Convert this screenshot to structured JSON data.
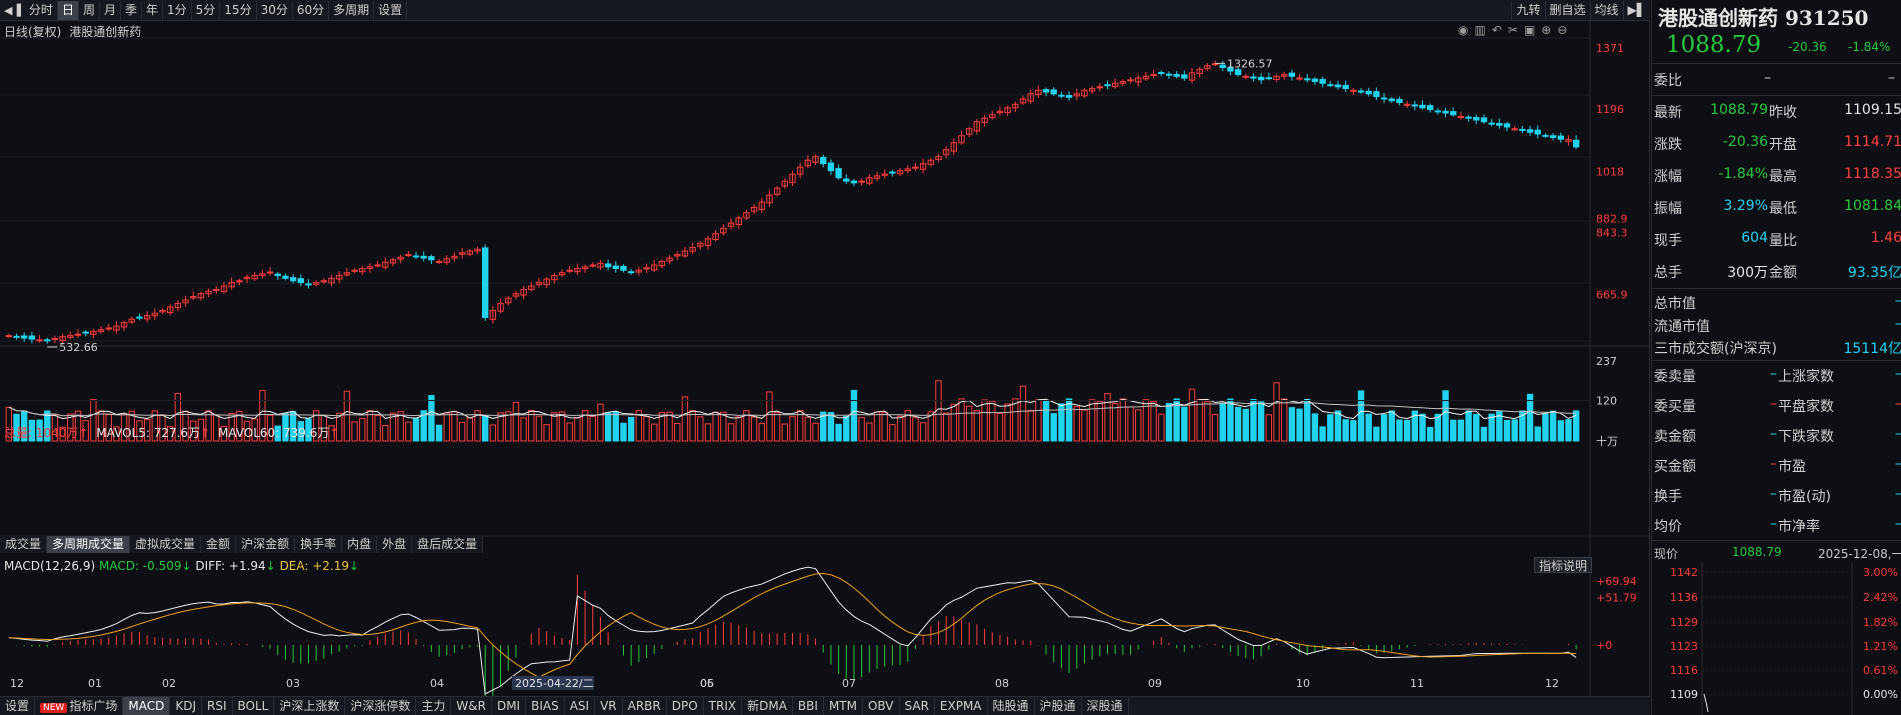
{
  "toolbar": {
    "items": [
      "分时",
      "日",
      "周",
      "月",
      "季",
      "年",
      "1分",
      "5分",
      "15分",
      "30分",
      "60分",
      "多周期",
      "设置"
    ],
    "active_index": 1,
    "right_items": [
      "九转",
      "删自选",
      "均线"
    ]
  },
  "kline": {
    "title": "日线(复权)",
    "name": "港股通创新药",
    "price_labels": [
      "1371",
      "1196",
      "1018",
      "882.9",
      "843.3",
      "665.9"
    ],
    "max_label": "1326.57",
    "min_label": "532.66"
  },
  "volume": {
    "total_label": "总量: 1040万",
    "mavol5_label": "MAVOL5: 727.6万",
    "mavol60_label": "MAVOL60: 739.6万",
    "axis_labels": [
      "237",
      "120",
      "十万"
    ],
    "tabs": [
      "成交量",
      "多周期成交量",
      "虚拟成交量",
      "金额",
      "沪深金额",
      "换手率",
      "内盘",
      "外盘",
      "盘后成交量"
    ],
    "active_tab": 1
  },
  "macd": {
    "title": "MACD(12,26,9)",
    "macd_label": "MACD: -0.509",
    "diff_label": "DIFF: +1.94",
    "dea_label": "DEA: +2.19",
    "indicator_btn": "指标说明",
    "axis_labels": [
      "+69.94",
      "+51.79",
      "+0"
    ]
  },
  "xaxis": {
    "months": [
      "12",
      "01",
      "02",
      "03",
      "04",
      "05",
      "06",
      "07",
      "08",
      "09",
      "10",
      "11",
      "12"
    ],
    "cursor_date": "2025-04-22/二"
  },
  "bottom_tabs": {
    "items": [
      "设置",
      "指标广场",
      "MACD",
      "KDJ",
      "RSI",
      "BOLL",
      "沪深上涨数",
      "沪深涨停数",
      "主力",
      "W&R",
      "DMI",
      "BIAS",
      "ASI",
      "VR",
      "ARBR",
      "DPO",
      "TRIX",
      "新DMA",
      "BBI",
      "MTM",
      "OBV",
      "SAR",
      "EXPMA",
      "陆股通",
      "沪股通",
      "深股通"
    ],
    "new_badge": "NEW",
    "active_index": 2
  },
  "quote": {
    "name": "港股通创新药 931250",
    "price": "1088.79",
    "change": "-20.36",
    "change_pct": "-1.84%",
    "weibi_label": "委比",
    "weibi_value": "–",
    "weibi_value2": "–",
    "rows": [
      {
        "l1": "最新",
        "v1": "1088.79",
        "c1": "green",
        "l2": "昨收",
        "v2": "1109.15",
        "c2": "white"
      },
      {
        "l1": "涨跌",
        "v1": "-20.36",
        "c1": "green",
        "l2": "开盘",
        "v2": "1114.71",
        "c2": "red"
      },
      {
        "l1": "涨幅",
        "v1": "-1.84%",
        "c1": "green",
        "l2": "最高",
        "v2": "1118.35",
        "c2": "red"
      },
      {
        "l1": "振幅",
        "v1": "3.29%",
        "c1": "cyan",
        "l2": "最低",
        "v2": "1081.84",
        "c2": "green"
      },
      {
        "l1": "现手",
        "v1": "604",
        "c1": "cyan",
        "l2": "量比",
        "v2": "1.46",
        "c2": "red"
      },
      {
        "l1": "总手",
        "v1": "300万",
        "c1": "white",
        "l2": "金额",
        "v2": "93.35亿",
        "c2": "cyan"
      }
    ],
    "market_rows": [
      {
        "l": "总市值",
        "v": "–"
      },
      {
        "l": "流通市值",
        "v": "–"
      },
      {
        "l": "三市成交额(沪深京)",
        "v": "15114亿"
      }
    ],
    "pair_rows": [
      {
        "l1": "委卖量",
        "v1": "–",
        "l2": "上涨家数",
        "v2": "–"
      },
      {
        "l1": "委买量",
        "v1": "–",
        "l2": "平盘家数",
        "v2": "–"
      },
      {
        "l1": "卖金额",
        "v1": "–",
        "l2": "下跌家数",
        "v2": "–"
      },
      {
        "l1": "买金额",
        "v1": "–",
        "l2": "市盈",
        "v2": "–"
      },
      {
        "l1": "换手",
        "v1": "–",
        "l2": "市盈(动)",
        "v2": "–"
      },
      {
        "l1": "均价",
        "v1": "–",
        "l2": "市净率",
        "v2": "–"
      }
    ],
    "intraday_label": "现价",
    "intraday_price": "1088.79",
    "intraday_date": "2025-12-08,一",
    "intraday_prices": [
      "1142",
      "1136",
      "1129",
      "1123",
      "1116",
      "1109"
    ],
    "intraday_pcts": [
      "3.00%",
      "2.42%",
      "1.82%",
      "1.21%",
      "0.61%",
      "0.00%"
    ]
  },
  "chart_data": {
    "type": "candlestick",
    "description_series": "daily close approximations of 港股通创新药 index",
    "close": [
      548,
      545,
      541,
      538,
      536,
      533,
      540,
      545,
      548,
      552,
      556,
      560,
      565,
      570,
      575,
      585,
      595,
      600,
      605,
      612,
      620,
      630,
      640,
      650,
      660,
      668,
      675,
      680,
      690,
      700,
      705,
      715,
      720,
      725,
      730,
      720,
      712,
      705,
      700,
      695,
      700,
      705,
      712,
      720,
      728,
      735,
      740,
      745,
      750,
      758,
      765,
      772,
      780,
      775,
      770,
      765,
      760,
      768,
      775,
      785,
      790,
      795,
      600,
      620,
      640,
      655,
      668,
      680,
      690,
      700,
      710,
      720,
      728,
      735,
      740,
      745,
      750,
      755,
      745,
      740,
      735,
      730,
      735,
      742,
      750,
      760,
      770,
      780,
      790,
      800,
      812,
      825,
      840,
      855,
      870,
      885,
      900,
      915,
      930,
      950,
      970,
      990,
      1010,
      1030,
      1050,
      1060,
      1040,
      1020,
      1000,
      990,
      985,
      990,
      1000,
      1005,
      1010,
      1015,
      1020,
      1025,
      1030,
      1040,
      1050,
      1060,
      1080,
      1100,
      1120,
      1140,
      1160,
      1170,
      1180,
      1190,
      1200,
      1210,
      1225,
      1240,
      1250,
      1245,
      1240,
      1235,
      1230,
      1240,
      1250,
      1255,
      1260,
      1265,
      1270,
      1275,
      1280,
      1285,
      1290,
      1295,
      1300,
      1295,
      1290,
      1285,
      1300,
      1310,
      1320,
      1326,
      1315,
      1305,
      1295,
      1290,
      1285,
      1280,
      1285,
      1290,
      1295,
      1290,
      1285,
      1280,
      1275,
      1270,
      1265,
      1260,
      1255,
      1250,
      1245,
      1240,
      1232,
      1225,
      1220,
      1215,
      1210,
      1205,
      1200,
      1195,
      1190,
      1185,
      1180,
      1175,
      1170,
      1165,
      1160,
      1155,
      1150,
      1145,
      1140,
      1135,
      1130,
      1125,
      1120,
      1115,
      1110,
      1109,
      1088
    ],
    "price_axis": [
      532.66,
      1371
    ]
  }
}
